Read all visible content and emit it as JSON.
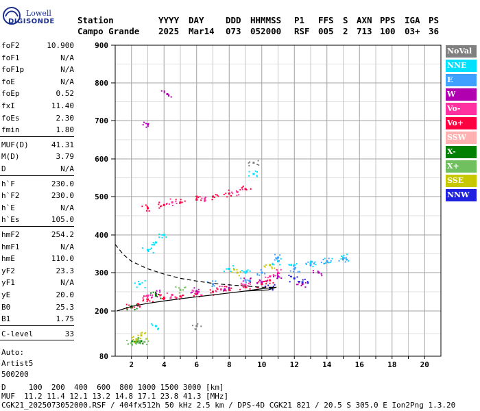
{
  "logo": {
    "line1": "Lowell",
    "line2": "DIGISONDE"
  },
  "header": {
    "row1": [
      "Station",
      "YYYY",
      "DAY",
      "DDD",
      "HHMMSS",
      "P1",
      "FFS",
      "S",
      "AXN",
      "PPS",
      "IGA",
      "PS"
    ],
    "row2": [
      "Campo Grande",
      "2025",
      "Mar14",
      "073",
      "052000",
      "RSF",
      "005",
      "2",
      "713",
      "100",
      "03+",
      "36"
    ]
  },
  "params": [
    {
      "name": "foF2",
      "value": "10.900"
    },
    {
      "name": "foF1",
      "value": "N/A"
    },
    {
      "name": "foF1p",
      "value": "N/A"
    },
    {
      "name": "foE",
      "value": "N/A"
    },
    {
      "name": "foEp",
      "value": "0.52"
    },
    {
      "name": "fxI",
      "value": "11.40"
    },
    {
      "name": "foEs",
      "value": "2.30"
    },
    {
      "name": "fmin",
      "value": "1.80"
    },
    {
      "name": "MUF(D)",
      "value": "41.31"
    },
    {
      "name": "M(D)",
      "value": "3.79"
    },
    {
      "name": "D",
      "value": "N/A"
    },
    {
      "name": "h`F",
      "value": "230.0"
    },
    {
      "name": "h`F2",
      "value": "230.0"
    },
    {
      "name": "h`E",
      "value": "N/A"
    },
    {
      "name": "h`Es",
      "value": "105.0"
    },
    {
      "name": "hmF2",
      "value": "254.2"
    },
    {
      "name": "hmF1",
      "value": "N/A"
    },
    {
      "name": "hmE",
      "value": "110.0"
    },
    {
      "name": "yF2",
      "value": "23.3"
    },
    {
      "name": "yF1",
      "value": "N/A"
    },
    {
      "name": "yE",
      "value": "20.0"
    },
    {
      "name": "B0",
      "value": "25.3"
    },
    {
      "name": "B1",
      "value": "1.75"
    },
    {
      "name": "C-level",
      "value": "33"
    }
  ],
  "auto": [
    "Auto:",
    "Artist5",
    "500200"
  ],
  "legend": [
    {
      "label": "NoVal",
      "color": "#808080"
    },
    {
      "label": "NNE",
      "color": "#00e0ff"
    },
    {
      "label": "E",
      "color": "#40a0ff"
    },
    {
      "label": "W",
      "color": "#b000b0"
    },
    {
      "label": "Vo-",
      "color": "#ff30a0"
    },
    {
      "label": "Vo+",
      "color": "#ff0040"
    },
    {
      "label": "SSW",
      "color": "#ffb0b0"
    },
    {
      "label": "X-",
      "color": "#008000"
    },
    {
      "label": "X+",
      "color": "#70c060"
    },
    {
      "label": "SSE",
      "color": "#c8c800"
    },
    {
      "label": "NNW",
      "color": "#2020e0"
    }
  ],
  "footer": {
    "line1": "D     100  200  400  600  800 1000 1500 3000 [km]",
    "line2": "MUF  11.2 11.4 12.1 13.2 14.8 17.1 23.8 41.3 [MHz]",
    "line3": "CGK21_2025073052000.RSF / 404fx512h 50 kHz 2.5 km / DPS-4D CGK21 821 / 20.5 S 305.0 E Ion2Png 1.3.20"
  },
  "chart_data": {
    "type": "scatter",
    "xlabel": "",
    "ylabel": "",
    "xlim": [
      1,
      21
    ],
    "ylim": [
      80,
      900
    ],
    "xticks": [
      2,
      4,
      6,
      8,
      10,
      12,
      14,
      16,
      18,
      20
    ],
    "yticks": [
      80,
      200,
      300,
      400,
      500,
      600,
      700,
      800,
      900
    ],
    "grid": true,
    "legend_position": "right",
    "series": [
      {
        "name": "Vo+",
        "color": "#ff0040",
        "points": [
          [
            2.0,
            210
          ],
          [
            2.4,
            218
          ],
          [
            3.0,
            230
          ],
          [
            4.0,
            235
          ],
          [
            5.0,
            238
          ],
          [
            6.0,
            244
          ],
          [
            7.0,
            250
          ],
          [
            8.0,
            255
          ],
          [
            9.0,
            262
          ],
          [
            10.0,
            270
          ],
          [
            10.5,
            280
          ],
          [
            3.0,
            470
          ],
          [
            4.0,
            478
          ],
          [
            5.0,
            485
          ],
          [
            6.0,
            492
          ],
          [
            7.0,
            500
          ],
          [
            8.0,
            508
          ],
          [
            9.0,
            520
          ]
        ]
      },
      {
        "name": "Vo-",
        "color": "#ff30a0",
        "points": [
          [
            3.0,
            240
          ],
          [
            4.5,
            242
          ],
          [
            6.0,
            250
          ],
          [
            7.5,
            256
          ],
          [
            9.0,
            268
          ],
          [
            10.5,
            290
          ],
          [
            11.0,
            300
          ],
          [
            4.5,
            485
          ],
          [
            6.5,
            495
          ],
          [
            8.5,
            512
          ]
        ]
      },
      {
        "name": "W",
        "color": "#b000b0",
        "points": [
          [
            3.5,
            245
          ],
          [
            6.0,
            252
          ],
          [
            8.0,
            260
          ],
          [
            10.0,
            275
          ],
          [
            11.0,
            290
          ],
          [
            12.5,
            270
          ],
          [
            13.5,
            300
          ],
          [
            9.0,
            280
          ],
          [
            3.0,
            690
          ],
          [
            4.2,
            770
          ]
        ]
      },
      {
        "name": "NNE",
        "color": "#00e0ff",
        "points": [
          [
            11.0,
            330
          ],
          [
            12.0,
            320
          ],
          [
            13.0,
            325
          ],
          [
            14.0,
            330
          ],
          [
            15.0,
            340
          ],
          [
            3.0,
            360
          ],
          [
            3.5,
            380
          ],
          [
            4.0,
            400
          ],
          [
            8.0,
            310
          ],
          [
            9.0,
            300
          ],
          [
            2.5,
            270
          ],
          [
            9.5,
            560
          ],
          [
            3.5,
            160
          ]
        ]
      },
      {
        "name": "E",
        "color": "#40a0ff",
        "points": [
          [
            10.0,
            300
          ],
          [
            11.0,
            340
          ],
          [
            12.0,
            310
          ],
          [
            13.0,
            320
          ],
          [
            14.0,
            330
          ],
          [
            15.0,
            335
          ],
          [
            9.0,
            280
          ],
          [
            7.0,
            270
          ]
        ]
      },
      {
        "name": "X-",
        "color": "#008000",
        "points": [
          [
            2.0,
            212
          ],
          [
            2.2,
            118
          ],
          [
            2.6,
            120
          ],
          [
            3.5,
            240
          ]
        ]
      },
      {
        "name": "X+",
        "color": "#70c060",
        "points": [
          [
            2.0,
            115
          ],
          [
            2.4,
            122
          ],
          [
            2.8,
            118
          ],
          [
            5.0,
            255
          ]
        ]
      },
      {
        "name": "SSE",
        "color": "#c8c800",
        "points": [
          [
            2.3,
            125
          ],
          [
            2.6,
            135
          ],
          [
            8.5,
            300
          ],
          [
            10.5,
            320
          ]
        ]
      },
      {
        "name": "NNW",
        "color": "#2020e0",
        "points": [
          [
            12.5,
            275
          ],
          [
            12.0,
            285
          ],
          [
            10.5,
            260
          ]
        ]
      },
      {
        "name": "NoVal",
        "color": "#808080",
        "points": [
          [
            6.0,
            160
          ],
          [
            9.5,
            590
          ]
        ]
      }
    ],
    "profile_solid": [
      [
        1.1,
        200
      ],
      [
        2.0,
        212
      ],
      [
        3.0,
        220
      ],
      [
        4.0,
        226
      ],
      [
        5.0,
        232
      ],
      [
        6.0,
        237
      ],
      [
        7.0,
        242
      ],
      [
        8.0,
        247
      ],
      [
        9.0,
        252
      ],
      [
        10.0,
        258
      ],
      [
        10.9,
        262
      ],
      [
        10.4,
        255
      ],
      [
        9.0,
        252
      ]
    ],
    "profile_dashed": [
      [
        1.0,
        375
      ],
      [
        1.5,
        348
      ],
      [
        2.0,
        330
      ],
      [
        3.0,
        310
      ],
      [
        4.0,
        296
      ],
      [
        5.0,
        285
      ],
      [
        6.0,
        278
      ],
      [
        7.0,
        272
      ],
      [
        8.0,
        268
      ],
      [
        9.0,
        265
      ],
      [
        10.0,
        262
      ],
      [
        10.9,
        262
      ]
    ]
  }
}
